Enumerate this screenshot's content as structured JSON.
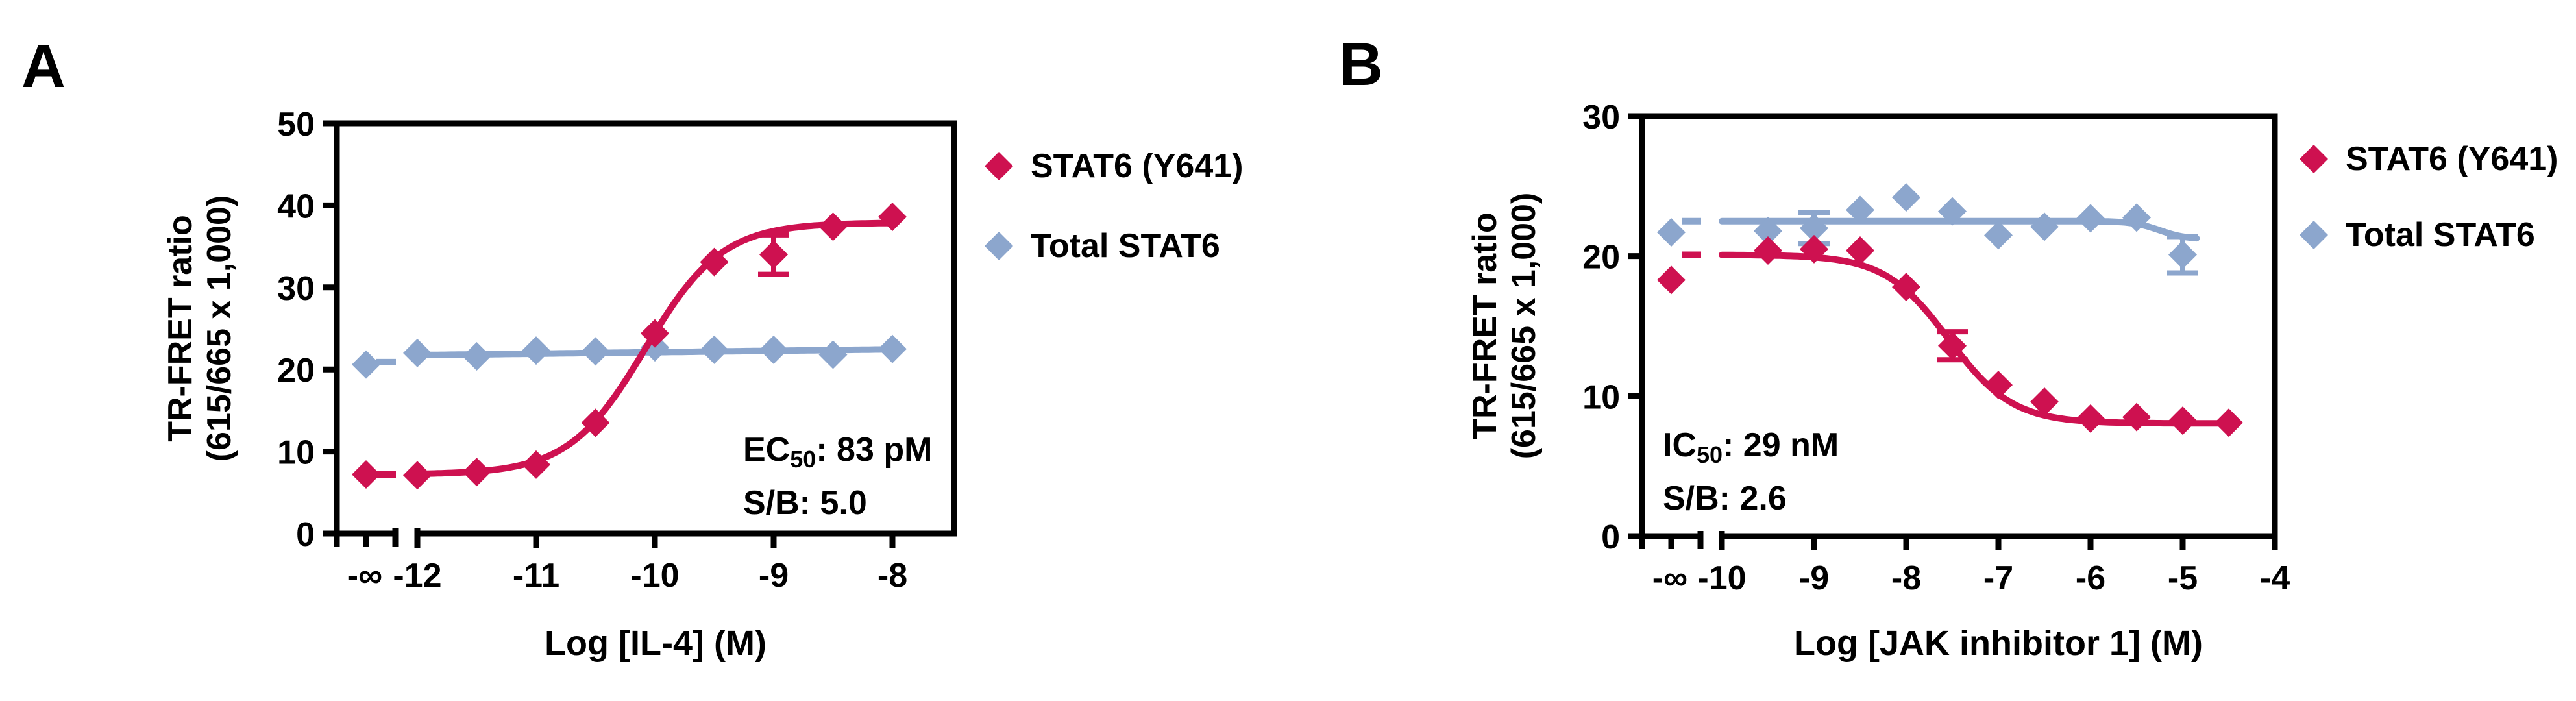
{
  "chart_data": [
    {
      "type": "scatter",
      "panel_label": "A",
      "title": "",
      "xlabel": "Log [IL-4] (M)",
      "ylabel_lines": [
        "TR-FRET ratio",
        "(615/665 x 1,000)"
      ],
      "ylim": [
        0,
        50
      ],
      "yticks": [
        0,
        10,
        20,
        30,
        40,
        50
      ],
      "xticks": [
        -12,
        -11,
        -10,
        -9,
        -8
      ],
      "control_tick_label": "-∞",
      "grid": false,
      "legend_position": "right-of-plot",
      "annotation": {
        "metric": "EC",
        "metric_sub": "50",
        "metric_rest": ": 83 pM",
        "signal_to_background": "S/B: 5.0"
      },
      "series": [
        {
          "name": "Total STAT6",
          "color": "#8CA6CD",
          "marker": "diamond",
          "control_x_label": "-∞",
          "control_y": 20.6,
          "control_dash_y": 20.9,
          "x": [
            -12,
            -11.5,
            -11,
            -10.5,
            -10,
            -9.5,
            -9,
            -8.5,
            -8
          ],
          "y": [
            22.0,
            21.6,
            22.3,
            22.2,
            22.7,
            22.4,
            22.4,
            21.8,
            22.5
          ],
          "yerr": [
            0,
            0,
            0,
            0,
            0,
            0,
            0,
            0,
            0
          ],
          "fit": {
            "type": "line",
            "x1": -12,
            "y1": 21.75,
            "x2": -8,
            "y2": 22.45
          }
        },
        {
          "name": "STAT6 (Y641)",
          "color": "#CE1150",
          "marker": "diamond",
          "control_x_label": "-∞",
          "control_y": 7.2,
          "control_dash_y": 7.2,
          "x": [
            -12,
            -11.5,
            -11,
            -10.5,
            -10,
            -9.5,
            -9,
            -8.5,
            -8
          ],
          "y": [
            7.1,
            7.5,
            8.4,
            13.5,
            24.4,
            33.1,
            34.0,
            37.4,
            38.6
          ],
          "yerr": [
            0,
            0,
            0,
            0,
            0,
            0,
            2.4,
            0,
            0
          ],
          "fit": {
            "type": "sigmoid",
            "bottom": 7.2,
            "top": 37.9,
            "logx50": -10.08,
            "hill": -1.35,
            "range": [
              -12,
              -8
            ]
          }
        }
      ]
    },
    {
      "type": "scatter",
      "panel_label": "B",
      "title": "",
      "xlabel": "Log [JAK inhibitor 1] (M)",
      "ylabel_lines": [
        "TR-FRET ratio",
        "(615/665 x 1,000)"
      ],
      "ylim": [
        0,
        30
      ],
      "yticks": [
        0,
        10,
        20,
        30
      ],
      "xticks": [
        -10,
        -9,
        -8,
        -7,
        -6,
        -5,
        -4
      ],
      "control_tick_label": "-∞",
      "grid": false,
      "legend_position": "right-of-plot",
      "annotation": {
        "metric": "IC",
        "metric_sub": "50",
        "metric_rest": ": 29 nM",
        "signal_to_background": "S/B: 2.6"
      },
      "series": [
        {
          "name": "Total STAT6",
          "color": "#8CA6CD",
          "marker": "diamond",
          "control_x_label": "-∞",
          "control_y": 21.7,
          "control_dash_y": 22.5,
          "x": [
            -9.5,
            -9,
            -8.5,
            -8,
            -7.5,
            -7,
            -6.5,
            -6,
            -5.5,
            -5
          ],
          "y": [
            21.8,
            22.0,
            23.3,
            24.2,
            23.2,
            21.5,
            22.1,
            22.7,
            22.75,
            20.1
          ],
          "yerr": [
            0,
            1.1,
            0,
            0,
            0,
            0,
            0,
            0,
            0,
            1.3
          ],
          "fit": {
            "type": "sigmoid",
            "top": 22.5,
            "bottom": 21.2,
            "logx50": -5.25,
            "hill": 3,
            "range": [
              -10,
              -4.85
            ]
          }
        },
        {
          "name": "STAT6 (Y641)",
          "color": "#CE1150",
          "marker": "diamond",
          "control_x_label": "-∞",
          "control_y": 18.3,
          "control_dash_y": 20.1,
          "x": [
            -9.5,
            -9,
            -8.5,
            -8,
            -7.5,
            -7,
            -6.5,
            -6,
            -5.5,
            -5,
            -4.5
          ],
          "y": [
            20.4,
            20.5,
            20.4,
            17.8,
            13.6,
            10.8,
            9.6,
            8.4,
            8.5,
            8.25,
            8.1
          ],
          "yerr": [
            0,
            0,
            0,
            0,
            1.0,
            0,
            0,
            0,
            0,
            0,
            0
          ],
          "fit": {
            "type": "sigmoid",
            "top": 20.1,
            "bottom": 8.05,
            "logx50": -7.54,
            "hill": 1.25,
            "range": [
              -10,
              -4.5
            ]
          }
        }
      ]
    }
  ]
}
